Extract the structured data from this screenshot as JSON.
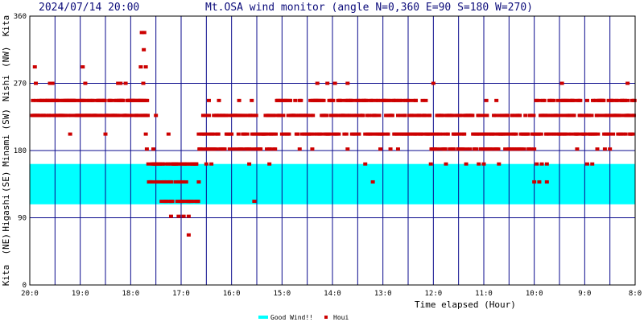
{
  "header": {
    "timestamp": "2024/07/14 20:00",
    "title": "Mt.OSA wind monitor (angle N=0,360 E=90 S=180 W=270)"
  },
  "chart_data": {
    "type": "scatter",
    "title": "Mt.OSA wind monitor (angle N=0,360 E=90 S=180 W=270)",
    "xlabel": "Time elapsed (Hour)",
    "ylabel": "Kita (NE) Higashi (SE) Minami (SW) Nishi (NW) Kita",
    "ylabel_parts": [
      "Kita",
      "(NE)",
      "Higashi",
      "(SE)",
      "Minami",
      "(SW)",
      "Nishi",
      "(NW)",
      "Kita"
    ],
    "ylim": [
      0,
      360
    ],
    "y_ticks": [
      "0",
      "90",
      "180",
      "270",
      "360"
    ],
    "y_tick_values": [
      0,
      90,
      180,
      270,
      360
    ],
    "xlim": [
      0,
      12
    ],
    "x_ticks": [
      "20:0",
      "19:0",
      "18:0",
      "17:0",
      "16:0",
      "15:0",
      "14:0",
      "13:0",
      "12:0",
      "11:0",
      "10:0",
      "9:0",
      "8:0"
    ],
    "grid": true,
    "legend_position": "bottom-center",
    "legend": [
      {
        "name": "Good Wind!!",
        "color": "#00ffff",
        "kind": "band"
      },
      {
        "name": "Houi",
        "color": "#cc0000",
        "kind": "marker"
      }
    ],
    "good_wind_band": [
      108,
      162
    ],
    "series_color": "#cc0000",
    "series": [
      {
        "name": "Houi",
        "segments": [
          {
            "x0": 0.05,
            "x1": 2.35,
            "ys": [
              247,
              227
            ]
          },
          {
            "x0": 2.35,
            "x1": 2.6,
            "ys": [
              162,
              138
            ]
          },
          {
            "x0": 2.6,
            "x1": 3.35,
            "ys": [
              112,
              138,
              162
            ]
          },
          {
            "x0": 3.35,
            "x1": 4.9,
            "ys": [
              202,
              182,
              227
            ]
          },
          {
            "x0": 4.9,
            "x1": 7.9,
            "ys": [
              247,
              227,
              202
            ]
          },
          {
            "x0": 7.9,
            "x1": 10.0,
            "ys": [
              202,
              182,
              227
            ]
          },
          {
            "x0": 10.0,
            "x1": 12.0,
            "ys": [
              202,
              227,
              247
            ]
          }
        ],
        "points": [
          [
            0.1,
            292
          ],
          [
            0.12,
            270
          ],
          [
            0.4,
            270
          ],
          [
            0.45,
            270
          ],
          [
            1.05,
            292
          ],
          [
            1.1,
            270
          ],
          [
            0.8,
            202
          ],
          [
            1.5,
            202
          ],
          [
            1.75,
            270
          ],
          [
            1.8,
            270
          ],
          [
            1.9,
            270
          ],
          [
            2.2,
            292
          ],
          [
            2.25,
            270
          ],
          [
            2.22,
            338
          ],
          [
            2.27,
            338
          ],
          [
            2.26,
            315
          ],
          [
            2.3,
            292
          ],
          [
            2.3,
            202
          ],
          [
            2.32,
            182
          ],
          [
            2.45,
            182
          ],
          [
            2.5,
            227
          ],
          [
            2.75,
            202
          ],
          [
            2.85,
            162
          ],
          [
            2.9,
            162
          ],
          [
            2.8,
            138
          ],
          [
            3.05,
            138
          ],
          [
            2.8,
            92
          ],
          [
            2.95,
            92
          ],
          [
            3.05,
            92
          ],
          [
            3.15,
            92
          ],
          [
            3.15,
            67
          ],
          [
            3.3,
            162
          ],
          [
            3.5,
            162
          ],
          [
            3.6,
            162
          ],
          [
            3.35,
            138
          ],
          [
            3.55,
            247
          ],
          [
            3.7,
            182
          ],
          [
            3.75,
            247
          ],
          [
            4.35,
            162
          ],
          [
            4.45,
            112
          ],
          [
            4.75,
            162
          ],
          [
            4.15,
            247
          ],
          [
            4.4,
            247
          ],
          [
            4.55,
            182
          ],
          [
            4.75,
            182
          ],
          [
            5.35,
            182
          ],
          [
            5.6,
            182
          ],
          [
            5.7,
            270
          ],
          [
            5.9,
            270
          ],
          [
            6.05,
            270
          ],
          [
            6.3,
            270
          ],
          [
            6.3,
            182
          ],
          [
            6.65,
            162
          ],
          [
            6.8,
            138
          ],
          [
            6.95,
            182
          ],
          [
            7.15,
            182
          ],
          [
            7.3,
            182
          ],
          [
            7.45,
            247
          ],
          [
            7.65,
            247
          ],
          [
            8.0,
            270
          ],
          [
            7.95,
            162
          ],
          [
            8.25,
            162
          ],
          [
            8.4,
            182
          ],
          [
            8.5,
            182
          ],
          [
            8.65,
            162
          ],
          [
            8.9,
            162
          ],
          [
            9.0,
            162
          ],
          [
            9.05,
            247
          ],
          [
            9.25,
            247
          ],
          [
            9.3,
            162
          ],
          [
            9.5,
            182
          ],
          [
            9.6,
            182
          ],
          [
            9.7,
            182
          ],
          [
            10.0,
            182
          ],
          [
            10.05,
            162
          ],
          [
            10.15,
            162
          ],
          [
            10.25,
            162
          ],
          [
            10.0,
            138
          ],
          [
            10.1,
            138
          ],
          [
            10.25,
            138
          ],
          [
            10.55,
            270
          ],
          [
            10.6,
            227
          ],
          [
            10.75,
            247
          ],
          [
            10.85,
            182
          ],
          [
            11.05,
            162
          ],
          [
            11.15,
            162
          ],
          [
            11.25,
            182
          ],
          [
            11.4,
            182
          ],
          [
            11.5,
            182
          ],
          [
            11.85,
            270
          ],
          [
            11.85,
            247
          ],
          [
            11.9,
            202
          ],
          [
            11.95,
            227
          ],
          [
            11.97,
            247
          ]
        ]
      }
    ]
  }
}
